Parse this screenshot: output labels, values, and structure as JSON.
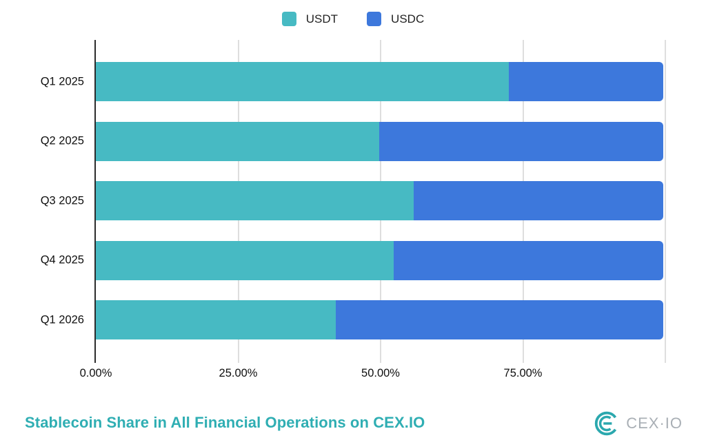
{
  "legend": {
    "items": [
      {
        "label": "USDT",
        "color": "#47BAC3"
      },
      {
        "label": "USDC",
        "color": "#3D78DC"
      }
    ]
  },
  "chart_data": {
    "type": "bar",
    "orientation": "horizontal",
    "stacked": true,
    "categories": [
      "Q1 2025",
      "Q2 2025",
      "Q3 2025",
      "Q4 2025",
      "Q1 2026"
    ],
    "series": [
      {
        "name": "USDT",
        "color": "#47BAC3",
        "values": [
          72.8,
          49.9,
          56.0,
          52.5,
          42.3
        ]
      },
      {
        "name": "USDC",
        "color": "#3D78DC",
        "values": [
          27.2,
          50.1,
          44.0,
          47.5,
          57.7
        ]
      }
    ],
    "value_unit": "%",
    "xlim": [
      0,
      100
    ],
    "x_ticks": [
      "0.00%",
      "25.00%",
      "50.00%",
      "75.00%"
    ],
    "x_tick_positions": [
      0,
      25,
      50,
      75
    ],
    "gridline_positions": [
      25,
      50,
      75,
      100
    ],
    "grid": true,
    "legend_position": "top"
  },
  "footer": {
    "title": "Stablecoin Share in All Financial Operations on CEX.IO",
    "title_color": "#2FAEB3",
    "logo_text": "CEX·IO",
    "logo_color": "#2BA8AE"
  }
}
